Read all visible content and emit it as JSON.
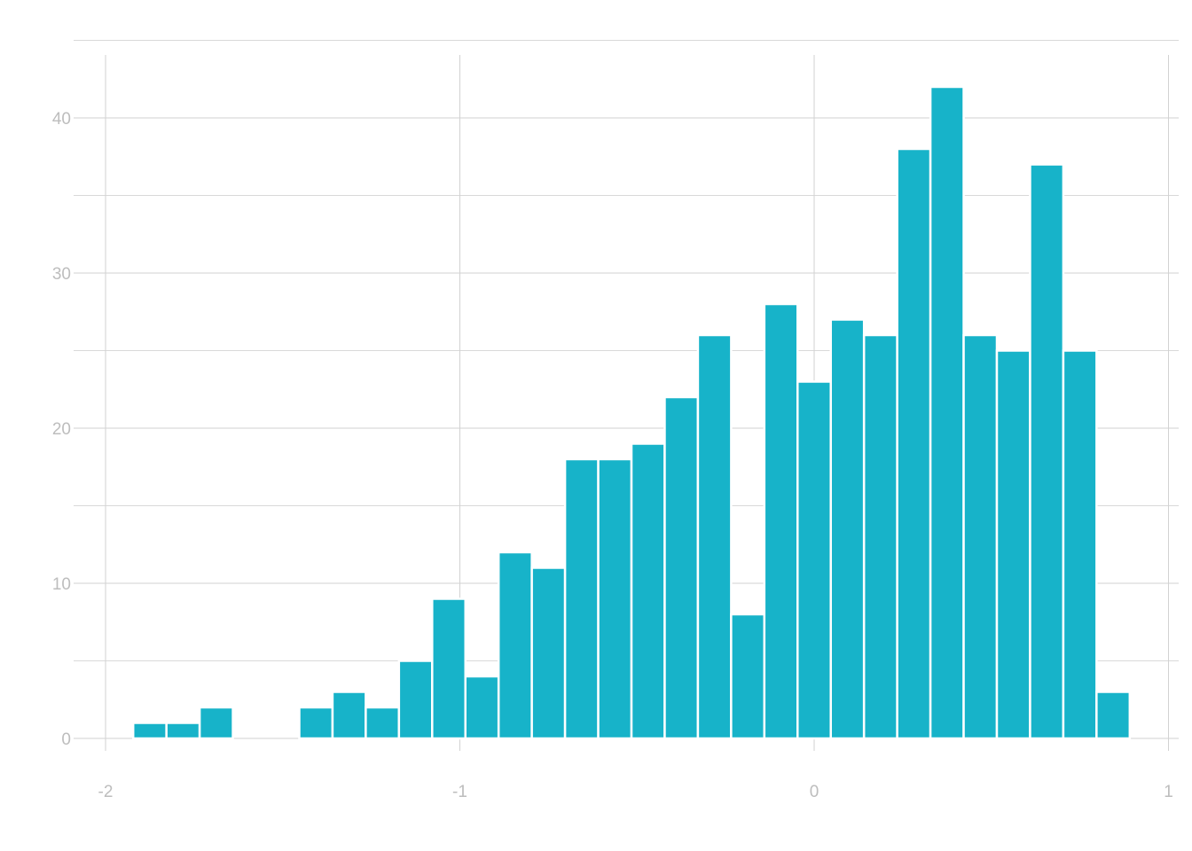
{
  "chart_data": {
    "type": "bar",
    "subtype": "histogram",
    "title": "",
    "xlabel": "",
    "ylabel": "",
    "xlim": [
      -2.0,
      1.0
    ],
    "ylim": [
      0,
      42
    ],
    "x_ticks": [
      -2,
      -1,
      0,
      1
    ],
    "x_tick_labels": [
      "-2",
      "-1",
      "0",
      "1"
    ],
    "y_ticks": [
      0,
      10,
      20,
      30,
      40
    ],
    "y_tick_labels": [
      "0",
      "10",
      "20",
      "30",
      "40"
    ],
    "bin_width": 0.09375,
    "bins": [
      {
        "x0": -1.921875,
        "x1": -1.828125,
        "count": 1
      },
      {
        "x0": -1.828125,
        "x1": -1.734375,
        "count": 1
      },
      {
        "x0": -1.734375,
        "x1": -1.640625,
        "count": 2
      },
      {
        "x0": -1.640625,
        "x1": -1.546875,
        "count": 0
      },
      {
        "x0": -1.546875,
        "x1": -1.453125,
        "count": 0
      },
      {
        "x0": -1.453125,
        "x1": -1.359375,
        "count": 2
      },
      {
        "x0": -1.359375,
        "x1": -1.265625,
        "count": 3
      },
      {
        "x0": -1.265625,
        "x1": -1.171875,
        "count": 2
      },
      {
        "x0": -1.171875,
        "x1": -1.078125,
        "count": 5
      },
      {
        "x0": -1.078125,
        "x1": -0.984375,
        "count": 9
      },
      {
        "x0": -0.984375,
        "x1": -0.890625,
        "count": 4
      },
      {
        "x0": -0.890625,
        "x1": -0.796875,
        "count": 12
      },
      {
        "x0": -0.796875,
        "x1": -0.703125,
        "count": 11
      },
      {
        "x0": -0.703125,
        "x1": -0.609375,
        "count": 18
      },
      {
        "x0": -0.609375,
        "x1": -0.515625,
        "count": 18
      },
      {
        "x0": -0.515625,
        "x1": -0.421875,
        "count": 19
      },
      {
        "x0": -0.421875,
        "x1": -0.328125,
        "count": 22
      },
      {
        "x0": -0.328125,
        "x1": -0.234375,
        "count": 26
      },
      {
        "x0": -0.234375,
        "x1": -0.140625,
        "count": 8
      },
      {
        "x0": -0.140625,
        "x1": -0.046875,
        "count": 28
      },
      {
        "x0": -0.046875,
        "x1": 0.046875,
        "count": 23
      },
      {
        "x0": 0.046875,
        "x1": 0.140625,
        "count": 27
      },
      {
        "x0": 0.140625,
        "x1": 0.234375,
        "count": 26
      },
      {
        "x0": 0.234375,
        "x1": 0.328125,
        "count": 38
      },
      {
        "x0": 0.328125,
        "x1": 0.421875,
        "count": 42
      },
      {
        "x0": 0.421875,
        "x1": 0.515625,
        "count": 26
      },
      {
        "x0": 0.515625,
        "x1": 0.609375,
        "count": 25
      },
      {
        "x0": 0.609375,
        "x1": 0.703125,
        "count": 37
      },
      {
        "x0": 0.703125,
        "x1": 0.796875,
        "count": 25
      },
      {
        "x0": 0.796875,
        "x1": 0.890625,
        "count": 3
      }
    ],
    "grid": true,
    "legend": "none",
    "colors": {
      "bar": "#17b3c9",
      "grid": "#d2d2d2",
      "tick_text": "#bdbdbd",
      "background": "#ffffff"
    }
  }
}
